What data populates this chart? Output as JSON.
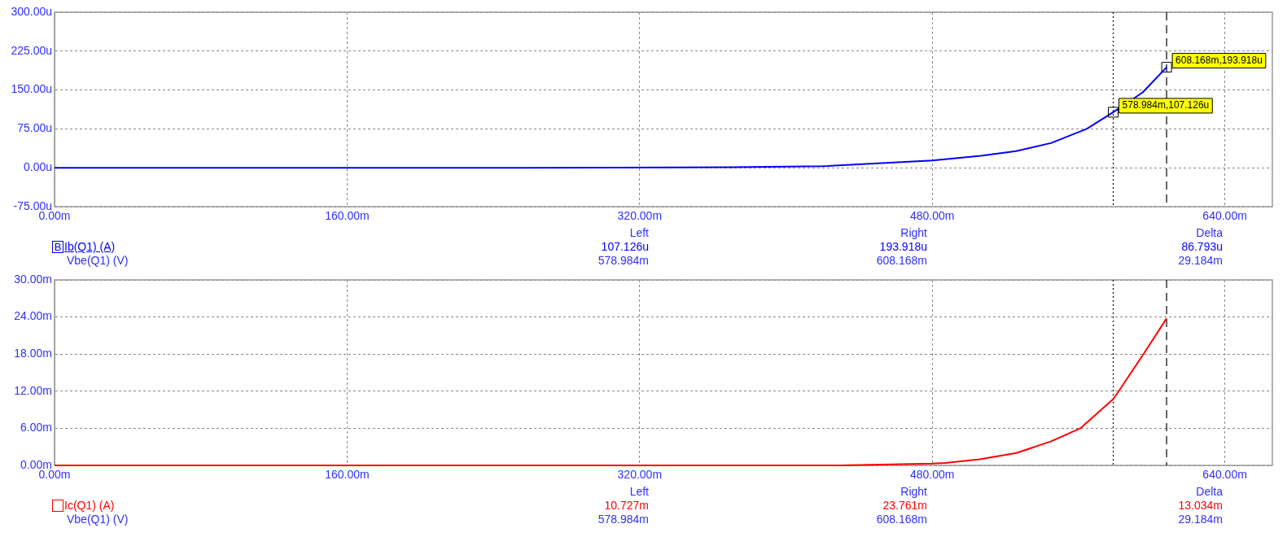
{
  "chart_data": [
    {
      "type": "line",
      "xlabel": "Vbe(Q1) (V)",
      "legend_title": "B",
      "legend": "bottom left",
      "grid": true,
      "xlim": [
        0,
        666
      ],
      "xticks": [
        {
          "value": 0,
          "label": "0.00m"
        },
        {
          "value": 160,
          "label": "160.00m"
        },
        {
          "value": 320,
          "label": "320.00m"
        },
        {
          "value": 480,
          "label": "480.00m"
        },
        {
          "value": 640,
          "label": "640.00m"
        }
      ],
      "ylim": [
        -75,
        300
      ],
      "yticks": [
        {
          "value": -75,
          "label": "-75.00u"
        },
        {
          "value": 0,
          "label": "0.00u"
        },
        {
          "value": 75,
          "label": "75.00u"
        },
        {
          "value": 150,
          "label": "150.00u"
        },
        {
          "value": 225,
          "label": "225.00u"
        },
        {
          "value": 300,
          "label": "300.00u"
        }
      ],
      "series": [
        {
          "name": "Ib(Q1) (A)",
          "color": "#0000ff",
          "x": [
            0,
            257,
            371,
            420,
            480,
            506.5,
            525.8,
            545.2,
            564.5,
            578.984,
            595,
            608.168
          ],
          "values": [
            0,
            0,
            1,
            3,
            14,
            23,
            32,
            48,
            75,
            107.126,
            145,
            193.918
          ]
        }
      ],
      "ref_lines": [
        {
          "axis": "x",
          "value": 578.984,
          "line_style": "dotted",
          "color": "#000000"
        },
        {
          "axis": "x",
          "value": 608.168,
          "line_style": "dashed",
          "color": "#000000"
        }
      ],
      "annotations": [
        {
          "text": "608.168m,193.918u",
          "x": 608.168,
          "y": 193.918
        },
        {
          "text": "578.984m,107.126u",
          "x": 578.984,
          "y": 107.126
        },
        "Left",
        "Right",
        "Delta",
        "107.126u",
        "193.918u",
        "86.793u",
        "578.984m",
        "608.168m",
        "29.184m"
      ]
    },
    {
      "type": "line",
      "xlabel": "Vbe(Q1) (V)",
      "legend": "bottom left",
      "grid": true,
      "xlim": [
        0,
        666
      ],
      "xticks": [
        {
          "value": 0,
          "label": "0.00m"
        },
        {
          "value": 160,
          "label": "160.00m"
        },
        {
          "value": 320,
          "label": "320.00m"
        },
        {
          "value": 480,
          "label": "480.00m"
        },
        {
          "value": 640,
          "label": "640.00m"
        }
      ],
      "ylim": [
        0,
        30
      ],
      "yticks": [
        {
          "value": 0,
          "label": "0.00m"
        },
        {
          "value": 6,
          "label": "6.00m"
        },
        {
          "value": 12,
          "label": "12.00m"
        },
        {
          "value": 18,
          "label": "18.00m"
        },
        {
          "value": 24,
          "label": "24.00m"
        },
        {
          "value": 30,
          "label": "30.00m"
        }
      ],
      "series": [
        {
          "name": "Ic(Q1) (A)",
          "color": "#ff0000",
          "x": [
            0,
            430,
            480,
            487,
            506,
            526,
            545,
            561,
            578.984,
            582,
            595.5,
            608.168
          ],
          "values": [
            0,
            0,
            0.3,
            0.4,
            1,
            2,
            3.9,
            6,
            10.727,
            12,
            18,
            23.761
          ]
        }
      ],
      "ref_lines": [
        {
          "axis": "x",
          "value": 578.984,
          "line_style": "dotted",
          "color": "#000000"
        },
        {
          "axis": "x",
          "value": 608.168,
          "line_style": "dashed",
          "color": "#000000"
        }
      ],
      "annotations": [
        "Left",
        "Right",
        "Delta",
        "10.727m",
        "23.761m",
        "13.034m",
        "578.984m",
        "608.168m",
        "29.184m"
      ]
    }
  ]
}
